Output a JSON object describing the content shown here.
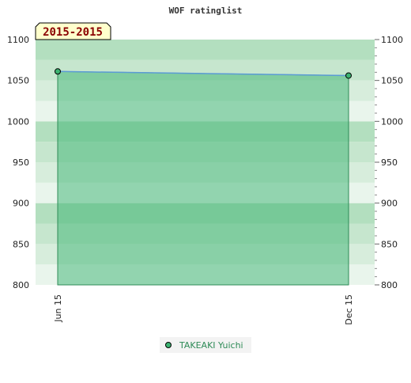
{
  "chart_data": {
    "type": "area",
    "title": "WOF ratinglist",
    "period_label": "2015-2015",
    "x": [
      "Jun 15",
      "Dec 15"
    ],
    "series": [
      {
        "name": "TAKEAKI Yuichi",
        "values": [
          1061,
          1056
        ]
      }
    ],
    "ylim": [
      800,
      1100
    ],
    "y_ticks": [
      800,
      850,
      900,
      950,
      1000,
      1050,
      1100
    ],
    "y_axis_both_sides": true,
    "legend_position": "bottom-center",
    "grid": "horizontal-bands",
    "colors": {
      "line": "#5b9bd5",
      "marker": "#3cb371",
      "area": "#3cb371",
      "legend_text": "#2e8b57",
      "period_label_bg": "#ffffcc",
      "period_label_text": "#8b0000"
    }
  }
}
